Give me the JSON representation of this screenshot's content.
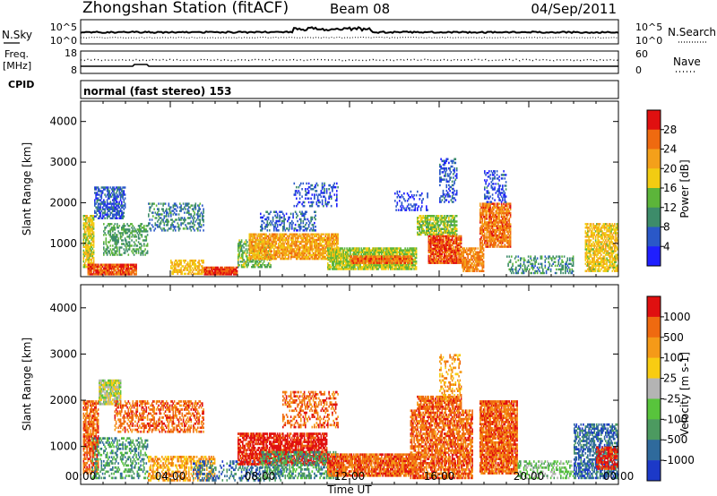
{
  "header": {
    "title": "Zhongshan Station (fitACF)",
    "beam": "Beam 08",
    "date": "04/Sep/2011"
  },
  "noise_panel": {
    "left_label": "N.Sky",
    "left_ticks": [
      "10^5",
      "10^0"
    ],
    "right_ticks": [
      "10^5",
      "10^0"
    ],
    "right_label": "N.Search"
  },
  "freq_panel": {
    "left_label_1": "Freq.",
    "left_label_2": "[MHz]",
    "left_ticks": [
      "18",
      "8"
    ],
    "right_ticks": [
      "60",
      "0"
    ],
    "right_label": "Nave"
  },
  "cpid": {
    "label": "CPID",
    "value": "normal (fast stereo) 153"
  },
  "x_axis": {
    "title": "Time UT",
    "ticks": [
      "00:00",
      "04:00",
      "08:00",
      "12:00",
      "16:00",
      "20:00",
      "00:00"
    ]
  },
  "chart_data": [
    {
      "type": "heatmap",
      "name": "power",
      "ylabel": "Slant Range [km]",
      "xlabel": "",
      "y_ticks": [
        "1000",
        "2000",
        "3000",
        "4000"
      ],
      "ylim": [
        180,
        4500
      ],
      "xlim_hours": [
        0,
        24
      ],
      "colorbar": {
        "label": "Power [dB]",
        "ticks": [
          "4",
          "8",
          "12",
          "16",
          "20",
          "24",
          "28"
        ],
        "range": [
          0,
          32
        ],
        "colors": [
          "#1f1fff",
          "#2a58c8",
          "#3d8c6a",
          "#5cb53a",
          "#f2cc12",
          "#f4a01a",
          "#ef6a10",
          "#e01010"
        ]
      },
      "patches": [
        {
          "t0": 0.1,
          "t1": 0.6,
          "r0": 400,
          "r1": 1700,
          "v": 18,
          "d": 0.85
        },
        {
          "t0": 0.6,
          "t1": 2.0,
          "r0": 1600,
          "r1": 2400,
          "v": 6,
          "d": 0.6
        },
        {
          "t0": 0.3,
          "t1": 2.5,
          "r0": 220,
          "r1": 500,
          "v": 27,
          "d": 0.9
        },
        {
          "t0": 1.0,
          "t1": 3.0,
          "r0": 700,
          "r1": 1500,
          "v": 12,
          "d": 0.4
        },
        {
          "t0": 3.0,
          "t1": 5.5,
          "r0": 1300,
          "r1": 2000,
          "v": 9,
          "d": 0.4
        },
        {
          "t0": 4.0,
          "t1": 5.5,
          "r0": 230,
          "r1": 600,
          "v": 20,
          "d": 0.6
        },
        {
          "t0": 5.5,
          "t1": 7.0,
          "r0": 220,
          "r1": 430,
          "v": 28,
          "d": 0.95
        },
        {
          "t0": 7.0,
          "t1": 8.5,
          "r0": 400,
          "r1": 1100,
          "v": 14,
          "d": 0.6
        },
        {
          "t0": 7.5,
          "t1": 11.5,
          "r0": 600,
          "r1": 1250,
          "v": 22,
          "d": 0.8
        },
        {
          "t0": 8.0,
          "t1": 10.5,
          "r0": 1300,
          "r1": 1800,
          "v": 7,
          "d": 0.35
        },
        {
          "t0": 9.5,
          "t1": 11.5,
          "r0": 1900,
          "r1": 2500,
          "v": 5,
          "d": 0.3
        },
        {
          "t0": 11.0,
          "t1": 15.0,
          "r0": 350,
          "r1": 900,
          "v": 16,
          "d": 0.85
        },
        {
          "t0": 12.0,
          "t1": 14.8,
          "r0": 500,
          "r1": 700,
          "v": 26,
          "d": 0.9
        },
        {
          "t0": 15.0,
          "t1": 16.8,
          "r0": 1200,
          "r1": 1700,
          "v": 15,
          "d": 0.7
        },
        {
          "t0": 15.5,
          "t1": 17.0,
          "r0": 500,
          "r1": 1200,
          "v": 27,
          "d": 0.85
        },
        {
          "t0": 16.0,
          "t1": 16.8,
          "r0": 2000,
          "r1": 3100,
          "v": 6,
          "d": 0.35
        },
        {
          "t0": 17.0,
          "t1": 18.0,
          "r0": 300,
          "r1": 900,
          "v": 24,
          "d": 0.75
        },
        {
          "t0": 17.8,
          "t1": 19.2,
          "r0": 900,
          "r1": 2000,
          "v": 25,
          "d": 0.8
        },
        {
          "t0": 18.0,
          "t1": 19.0,
          "r0": 2000,
          "r1": 2800,
          "v": 5,
          "d": 0.3
        },
        {
          "t0": 19.0,
          "t1": 22.0,
          "r0": 250,
          "r1": 700,
          "v": 10,
          "d": 0.35
        },
        {
          "t0": 22.5,
          "t1": 24.0,
          "r0": 300,
          "r1": 1500,
          "v": 19,
          "d": 0.7
        },
        {
          "t0": 14.0,
          "t1": 15.5,
          "r0": 1800,
          "r1": 2300,
          "v": 4,
          "d": 0.25
        }
      ]
    },
    {
      "type": "heatmap",
      "name": "velocity",
      "ylabel": "Slant Range [km]",
      "xlabel": "Time UT",
      "y_ticks": [
        "1000",
        "2000",
        "3000",
        "4000"
      ],
      "ylim": [
        180,
        4500
      ],
      "xlim_hours": [
        0,
        24
      ],
      "colorbar": {
        "label": "Velocity [m s-1]",
        "ticks": [
          "1000",
          "500",
          "100",
          "25",
          "-25",
          "-100",
          "-500",
          "-1000"
        ],
        "colors": [
          "#1c39c8",
          "#2f6a9c",
          "#4c9a60",
          "#58c43c",
          "#b4b4b4",
          "#f8cc12",
          "#f59a18",
          "#ef6a10",
          "#e01010"
        ]
      },
      "patches": [
        {
          "t0": 0.1,
          "t1": 0.8,
          "r0": 400,
          "r1": 2000,
          "c": 7,
          "d": 0.7
        },
        {
          "t0": 0.8,
          "t1": 1.8,
          "r0": 1900,
          "r1": 2450,
          "c": 4,
          "d": 0.85
        },
        {
          "t0": 0.5,
          "t1": 3.0,
          "r0": 300,
          "r1": 1200,
          "c": 2,
          "d": 0.35
        },
        {
          "t0": 1.5,
          "t1": 5.5,
          "r0": 1300,
          "r1": 2000,
          "c": 7,
          "d": 0.45
        },
        {
          "t0": 3.0,
          "t1": 6.0,
          "r0": 250,
          "r1": 800,
          "c": 6,
          "d": 0.5
        },
        {
          "t0": 5.0,
          "t1": 9.0,
          "r0": 250,
          "r1": 700,
          "c": 1,
          "d": 0.35
        },
        {
          "t0": 7.0,
          "t1": 11.0,
          "r0": 600,
          "r1": 1300,
          "c": 8,
          "d": 0.75
        },
        {
          "t0": 8.0,
          "t1": 11.5,
          "r0": 300,
          "r1": 900,
          "c": 2,
          "d": 0.45
        },
        {
          "t0": 9.0,
          "t1": 11.5,
          "r0": 1400,
          "r1": 2200,
          "c": 7,
          "d": 0.4
        },
        {
          "t0": 11.0,
          "t1": 15.0,
          "r0": 350,
          "r1": 850,
          "c": 7,
          "d": 0.85
        },
        {
          "t0": 14.7,
          "t1": 17.5,
          "r0": 300,
          "r1": 1800,
          "c": 7,
          "d": 0.7
        },
        {
          "t0": 15.0,
          "t1": 17.0,
          "r0": 1800,
          "r1": 2100,
          "c": 7,
          "d": 0.8
        },
        {
          "t0": 16.0,
          "t1": 17.0,
          "r0": 2000,
          "r1": 3000,
          "c": 6,
          "d": 0.35
        },
        {
          "t0": 17.8,
          "t1": 19.5,
          "r0": 400,
          "r1": 2000,
          "c": 7,
          "d": 0.85
        },
        {
          "t0": 19.5,
          "t1": 22.0,
          "r0": 300,
          "r1": 700,
          "c": 3,
          "d": 0.35
        },
        {
          "t0": 22.0,
          "t1": 24.0,
          "r0": 300,
          "r1": 1500,
          "c": 1,
          "d": 0.6
        },
        {
          "t0": 23.0,
          "t1": 24.0,
          "r0": 500,
          "r1": 1000,
          "c": 8,
          "d": 0.6
        }
      ]
    }
  ]
}
